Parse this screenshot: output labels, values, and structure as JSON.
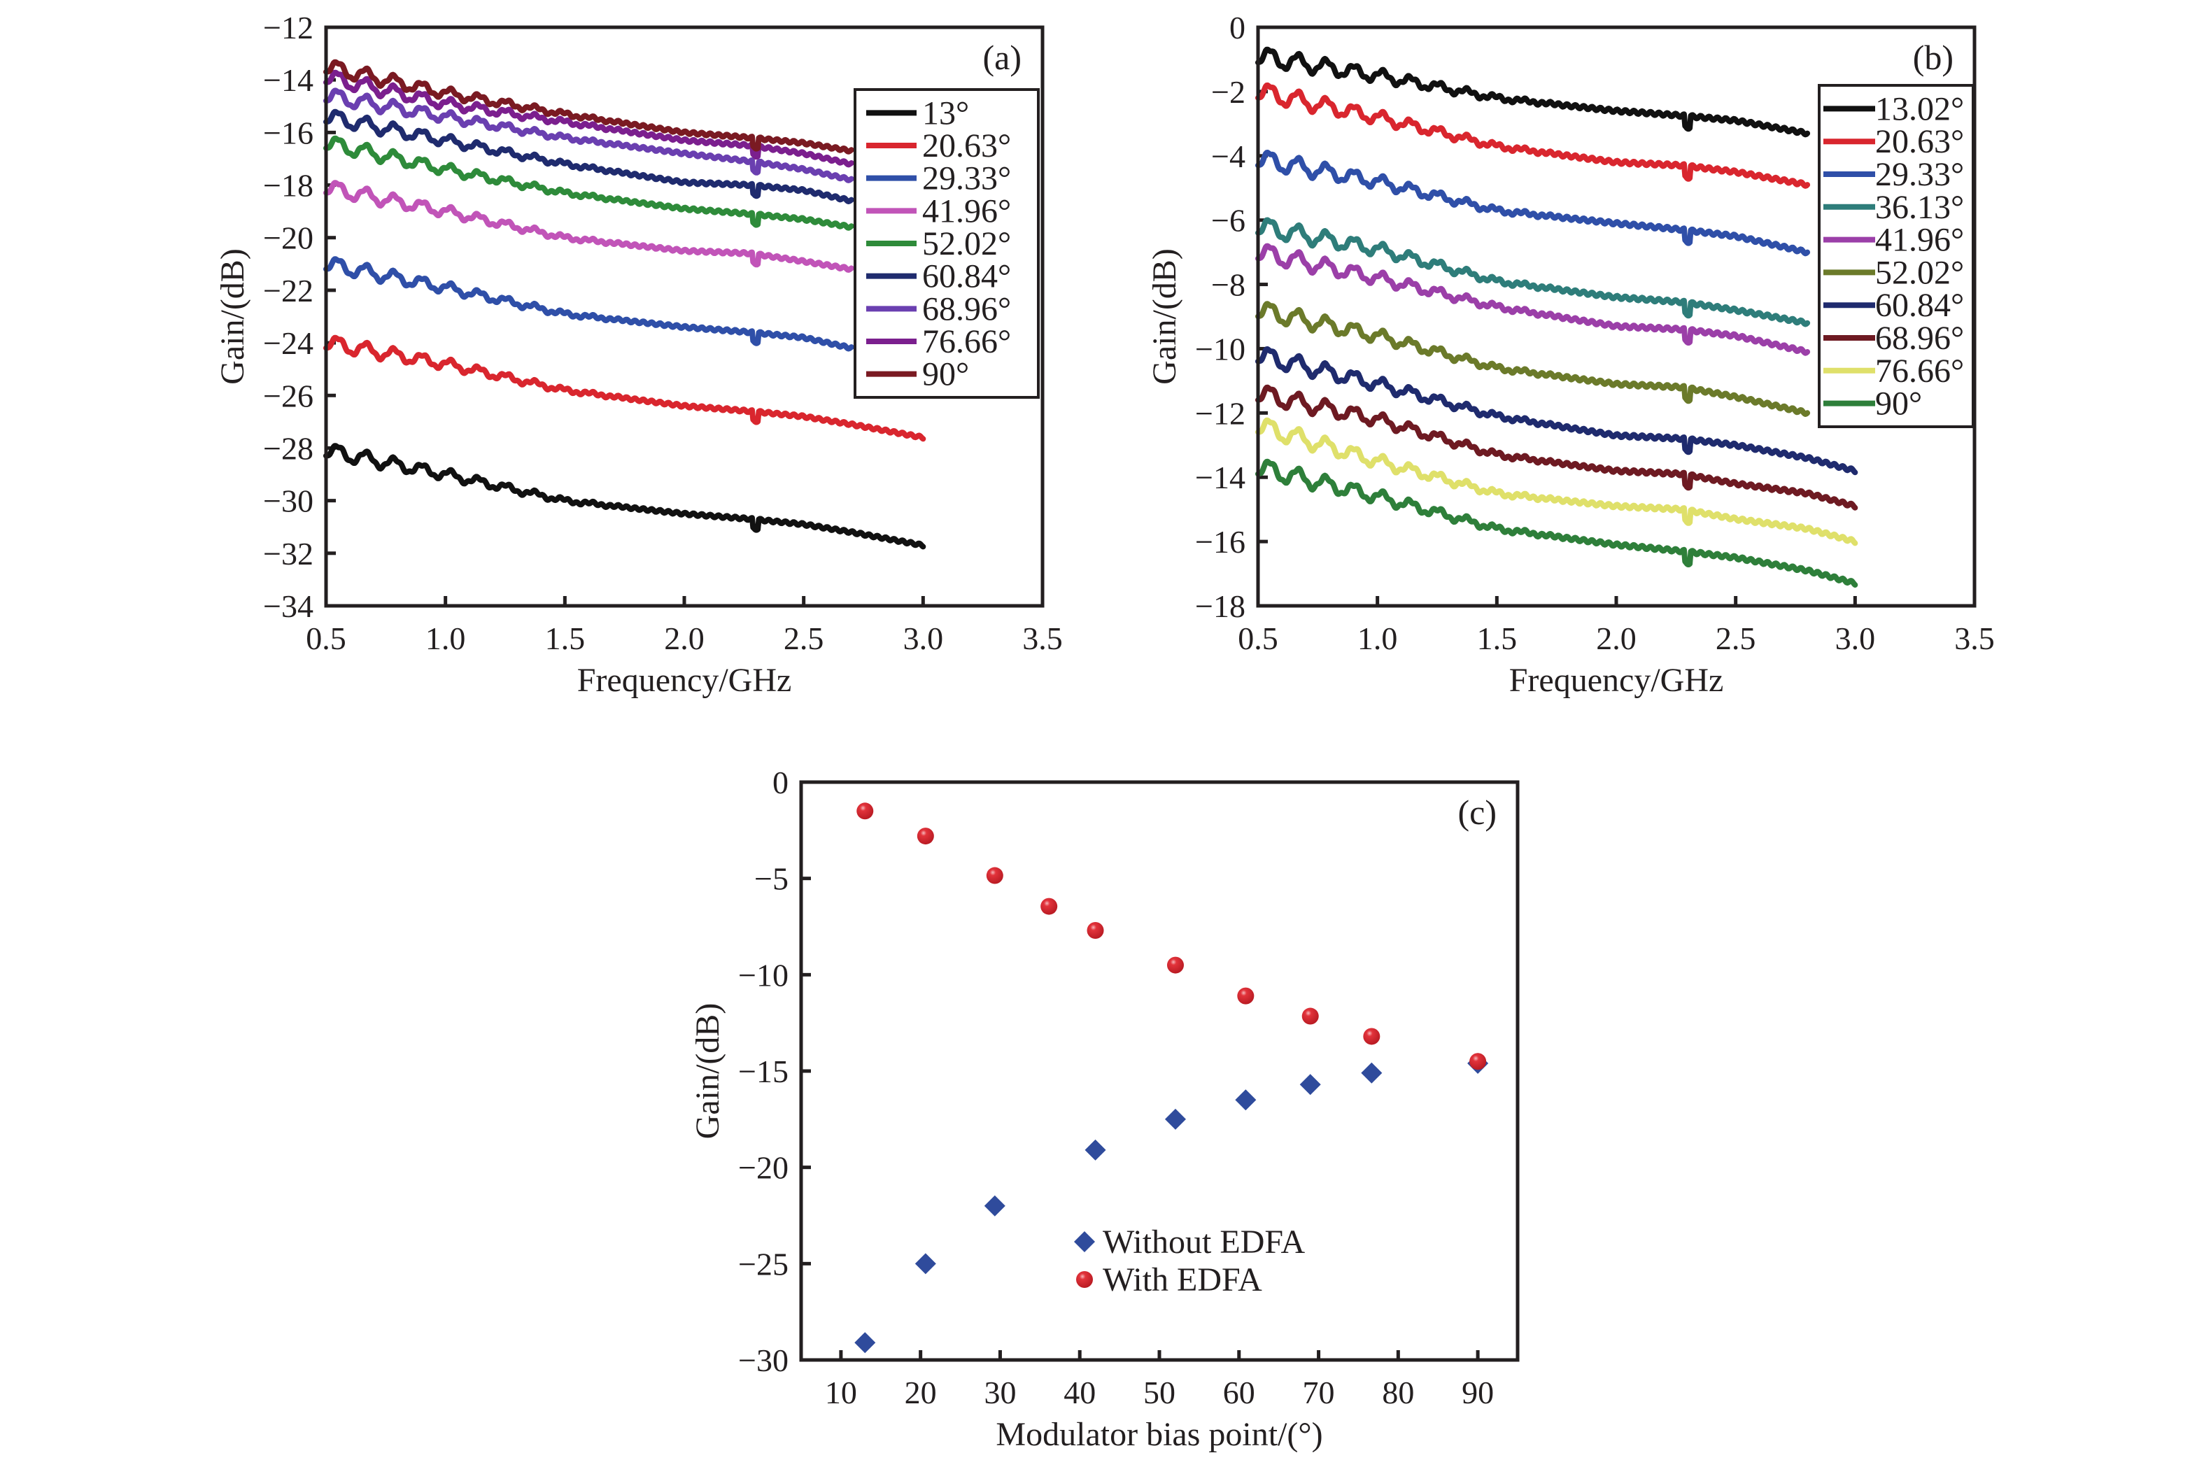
{
  "chart_data": [
    {
      "id": "a",
      "type": "line",
      "panel_label": "(a)",
      "title": "",
      "xlabel": "Frequency/GHz",
      "ylabel": "Gain/(dB)",
      "xlim": [
        0.5,
        3.5
      ],
      "ylim": [
        -34,
        -12
      ],
      "xticks": [
        0.5,
        1.0,
        1.5,
        2.0,
        2.5,
        3.0,
        3.5
      ],
      "xtick_labels": [
        "0.5",
        "1.0",
        "1.5",
        "2.0",
        "2.5",
        "3.0",
        "3.5"
      ],
      "yticks": [
        -34,
        -32,
        -30,
        -28,
        -26,
        -24,
        -22,
        -20,
        -18,
        -16,
        -14,
        -12
      ],
      "ytick_labels": [
        "−34",
        "−32",
        "−30",
        "−28",
        "−26",
        "−24",
        "−22",
        "−20",
        "−18",
        "−16",
        "−14",
        "−12"
      ],
      "grid": false,
      "legend_position": "upper-right",
      "x": [
        0.5,
        1.0,
        1.5,
        2.0,
        2.28,
        2.5,
        2.7,
        3.0
      ],
      "series": [
        {
          "name": "13°",
          "color": "#111111",
          "values": [
            -28.1,
            -29.0,
            -30.0,
            -30.5,
            -30.7,
            -30.9,
            -31.2,
            -31.7
          ]
        },
        {
          "name": "20.63°",
          "color": "#d9262e",
          "values": [
            -24.0,
            -24.8,
            -25.8,
            -26.4,
            -26.6,
            -26.8,
            -27.1,
            -27.6
          ]
        },
        {
          "name": "29.33°",
          "color": "#2f4fa8",
          "values": [
            -21.0,
            -21.9,
            -22.9,
            -23.4,
            -23.6,
            -23.8,
            -24.2,
            null
          ]
        },
        {
          "name": "41.96°",
          "color": "#c154b8",
          "values": [
            -18.1,
            -19.0,
            -20.0,
            -20.5,
            -20.6,
            -20.9,
            -21.2,
            null
          ]
        },
        {
          "name": "52.02°",
          "color": "#2e8b3a",
          "values": [
            -16.4,
            -17.4,
            -18.3,
            -18.9,
            -19.1,
            -19.3,
            -19.6,
            null
          ]
        },
        {
          "name": "60.84°",
          "color": "#1f2b6e",
          "values": [
            -15.4,
            -16.3,
            -17.2,
            -17.9,
            -18.0,
            -18.2,
            -18.6,
            null
          ]
        },
        {
          "name": "68.96°",
          "color": "#6a3fb0",
          "values": [
            -14.6,
            -15.4,
            -16.2,
            -16.8,
            -17.1,
            -17.4,
            -17.8,
            null
          ]
        },
        {
          "name": "76.66°",
          "color": "#7b1f8e",
          "values": [
            -13.9,
            -14.9,
            -15.6,
            -16.3,
            -16.5,
            -16.8,
            -17.2,
            null
          ]
        },
        {
          "name": "90°",
          "color": "#7a1a22",
          "values": [
            -13.5,
            -14.5,
            -15.3,
            -16.0,
            -16.2,
            -16.4,
            -16.7,
            null
          ]
        }
      ]
    },
    {
      "id": "b",
      "type": "line",
      "panel_label": "(b)",
      "title": "",
      "xlabel": "Frequency/GHz",
      "ylabel": "Gain/(dB)",
      "xlim": [
        0.5,
        3.5
      ],
      "ylim": [
        -18,
        0
      ],
      "xticks": [
        0.5,
        1.0,
        1.5,
        2.0,
        2.5,
        3.0,
        3.5
      ],
      "xtick_labels": [
        "0.5",
        "1.0",
        "1.5",
        "2.0",
        "2.5",
        "3.0",
        "3.5"
      ],
      "yticks": [
        -18,
        -16,
        -14,
        -12,
        -10,
        -8,
        -6,
        -4,
        -2,
        0
      ],
      "ytick_labels": [
        "−18",
        "−16",
        "−14",
        "−12",
        "−10",
        "−8",
        "−6",
        "−4",
        "−2",
        "0"
      ],
      "grid": false,
      "legend_position": "upper-right",
      "x": [
        0.5,
        1.0,
        1.5,
        2.0,
        2.28,
        2.5,
        2.8,
        3.0
      ],
      "series": [
        {
          "name": "13.02°",
          "color": "#111111",
          "values": [
            -0.9,
            -1.5,
            -2.2,
            -2.6,
            -2.75,
            -2.9,
            -3.3,
            null
          ]
        },
        {
          "name": "20.63°",
          "color": "#d9262e",
          "values": [
            -2.0,
            -2.8,
            -3.7,
            -4.2,
            -4.3,
            -4.5,
            -4.9,
            null
          ]
        },
        {
          "name": "29.33°",
          "color": "#2f4fa8",
          "values": [
            -4.1,
            -4.8,
            -5.7,
            -6.1,
            -6.3,
            -6.5,
            -7.0,
            null
          ]
        },
        {
          "name": "36.13°",
          "color": "#2e7d7a",
          "values": [
            -6.2,
            -6.9,
            -7.9,
            -8.4,
            -8.55,
            -8.8,
            -9.2,
            null
          ]
        },
        {
          "name": "41.96°",
          "color": "#9b3fa8",
          "values": [
            -7.0,
            -7.8,
            -8.7,
            -9.3,
            -9.4,
            -9.6,
            -10.1,
            null
          ]
        },
        {
          "name": "52.02°",
          "color": "#6b7a2a",
          "values": [
            -8.8,
            -9.6,
            -10.6,
            -11.1,
            -11.2,
            -11.5,
            -12.0,
            null
          ]
        },
        {
          "name": "60.84°",
          "color": "#1f2b6e",
          "values": [
            -10.2,
            -11.1,
            -12.1,
            -12.7,
            -12.8,
            -13.0,
            -13.4,
            -13.8
          ]
        },
        {
          "name": "68.96°",
          "color": "#6e1a22",
          "values": [
            -11.4,
            -12.2,
            -13.3,
            -13.8,
            -13.9,
            -14.2,
            -14.5,
            -14.9
          ]
        },
        {
          "name": "76.66°",
          "color": "#dfe06a",
          "values": [
            -12.4,
            -13.5,
            -14.5,
            -14.9,
            -15.0,
            -15.3,
            -15.6,
            -16.0
          ]
        },
        {
          "name": "90°",
          "color": "#2e7f3a",
          "values": [
            -13.7,
            -14.6,
            -15.6,
            -16.1,
            -16.3,
            -16.5,
            -16.9,
            -17.3
          ]
        }
      ]
    },
    {
      "id": "c",
      "type": "scatter",
      "panel_label": "(c)",
      "title": "",
      "xlabel": "Modulator bias point/(°)",
      "ylabel": "Gain/(dB)",
      "xlim": [
        5,
        95
      ],
      "ylim": [
        -30,
        0
      ],
      "xticks": [
        10,
        20,
        30,
        40,
        50,
        60,
        70,
        80,
        90
      ],
      "xtick_labels": [
        "10",
        "20",
        "30",
        "40",
        "50",
        "60",
        "70",
        "80",
        "90"
      ],
      "yticks": [
        -30,
        -25,
        -20,
        -15,
        -10,
        -5,
        0
      ],
      "ytick_labels": [
        "−30",
        "−25",
        "−20",
        "−15",
        "−10",
        "−5",
        "0"
      ],
      "grid": false,
      "legend_position": "lower-center",
      "series": [
        {
          "name": "Without EDFA",
          "marker": "diamond",
          "color": "#2f4b9c",
          "x": [
            13.02,
            20.63,
            29.33,
            41.96,
            52.02,
            60.84,
            68.96,
            76.66,
            90
          ],
          "y": [
            -29.1,
            -25.0,
            -22.0,
            -19.1,
            -17.5,
            -16.5,
            -15.7,
            -15.1,
            -14.6
          ]
        },
        {
          "name": "With EDFA",
          "marker": "circle",
          "color": "#d9262e",
          "x": [
            13.02,
            20.63,
            29.33,
            36.13,
            41.96,
            52.02,
            60.84,
            68.96,
            76.66,
            90
          ],
          "y": [
            -1.5,
            -2.8,
            -4.85,
            -6.45,
            -7.7,
            -9.5,
            -11.1,
            -12.15,
            -13.2,
            -14.5
          ]
        }
      ]
    }
  ]
}
